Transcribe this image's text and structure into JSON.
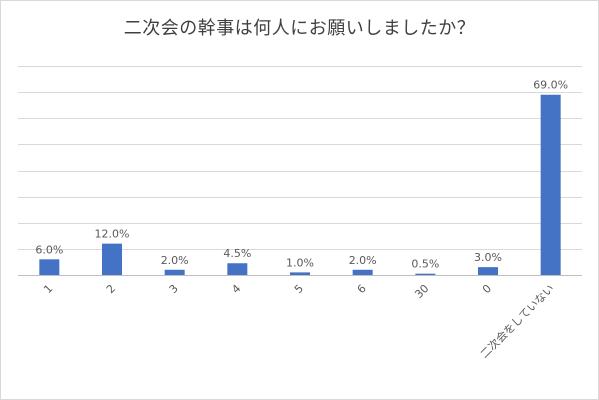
{
  "chart_data": {
    "type": "bar",
    "title": "二次会の幹事は何人にお願いしましたか？",
    "categories": [
      "1",
      "2",
      "3",
      "4",
      "5",
      "6",
      "30",
      "0",
      "二次会をしていない"
    ],
    "values": [
      6.0,
      12.0,
      2.0,
      4.5,
      1.0,
      2.0,
      0.5,
      3.0,
      69.0
    ],
    "labels": [
      "6.0%",
      "12.0%",
      "2.0%",
      "4.5%",
      "1.0%",
      "2.0%",
      "0.5%",
      "3.0%",
      "69.0%"
    ],
    "ylim": [
      0,
      80
    ],
    "y_axis_visible": false,
    "grid": true,
    "legend": "none",
    "bar_color": "#4472c4",
    "grid_color": "#d9d9d9",
    "text_color": "#595959",
    "x_label_rotation": -45
  }
}
